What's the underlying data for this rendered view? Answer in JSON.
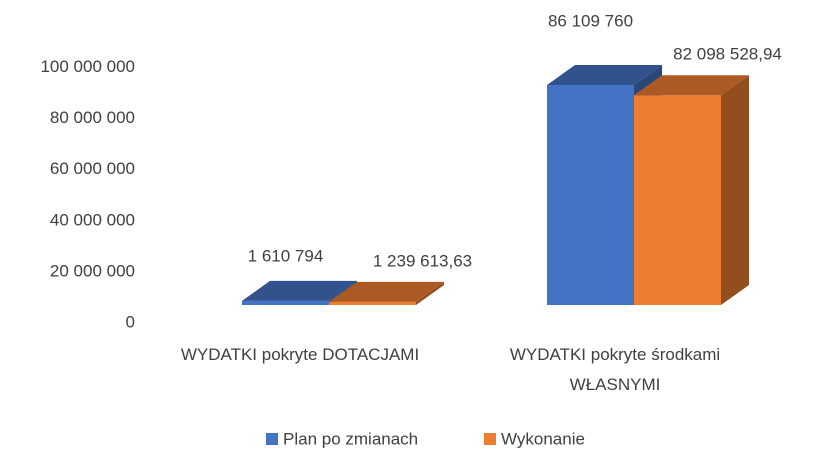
{
  "chart_data": {
    "type": "bar3d",
    "categories": [
      "WYDATKI pokryte DOTACJAMI",
      "WYDATKI pokryte środkami WŁASNYMI"
    ],
    "series": [
      {
        "name": "Plan po zmianach",
        "color": "#4472c4",
        "values": [
          1610794,
          86109760
        ],
        "value_labels": [
          "1 610 794",
          "86 109 760"
        ]
      },
      {
        "name": "Wykonanie",
        "color": "#ed7d31",
        "values": [
          1239613.63,
          82098528.94
        ],
        "value_labels": [
          "1 239 613,63",
          "82 098 528,94"
        ]
      }
    ],
    "ylim": [
      0,
      100000000
    ],
    "yticks": [
      0,
      {
        "value": 20000000,
        "label": "20 000 000"
      },
      {
        "value": 40000000,
        "label": "40 000 000"
      },
      {
        "value": 60000000,
        "label": "60 000 000"
      },
      {
        "value": 80000000,
        "label": "80 000 000"
      },
      {
        "value": 100000000,
        "label": "100 000 000"
      }
    ],
    "grid": false,
    "legend": "bottom"
  }
}
